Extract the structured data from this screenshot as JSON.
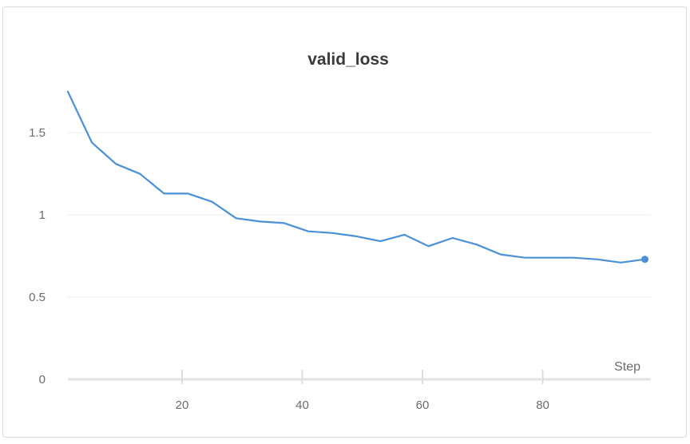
{
  "chart_data": {
    "type": "line",
    "title": "valid_loss",
    "xlabel": "Step",
    "ylabel": "",
    "xlim": [
      1,
      98
    ],
    "ylim": [
      0,
      1.88
    ],
    "x_ticks": [
      20,
      40,
      60,
      80
    ],
    "y_ticks": [
      0,
      0.5,
      1,
      1.5
    ],
    "x_tick_labels": [
      "20",
      "40",
      "60",
      "80"
    ],
    "y_tick_labels": [
      "0",
      "0.5",
      "1",
      "1.5"
    ],
    "grid": true,
    "legend": "none",
    "series": [
      {
        "color": "#4a90d9",
        "x": [
          1,
          5,
          9,
          13,
          17,
          21,
          25,
          29,
          33,
          37,
          41,
          45,
          49,
          53,
          57,
          61,
          65,
          69,
          73,
          77,
          81,
          85,
          89,
          93,
          97
        ],
        "y": [
          1.75,
          1.44,
          1.31,
          1.25,
          1.13,
          1.13,
          1.08,
          0.98,
          0.96,
          0.95,
          0.9,
          0.89,
          0.87,
          0.84,
          0.88,
          0.81,
          0.86,
          0.82,
          0.76,
          0.74,
          0.74,
          0.74,
          0.73,
          0.71,
          0.73
        ]
      }
    ]
  }
}
